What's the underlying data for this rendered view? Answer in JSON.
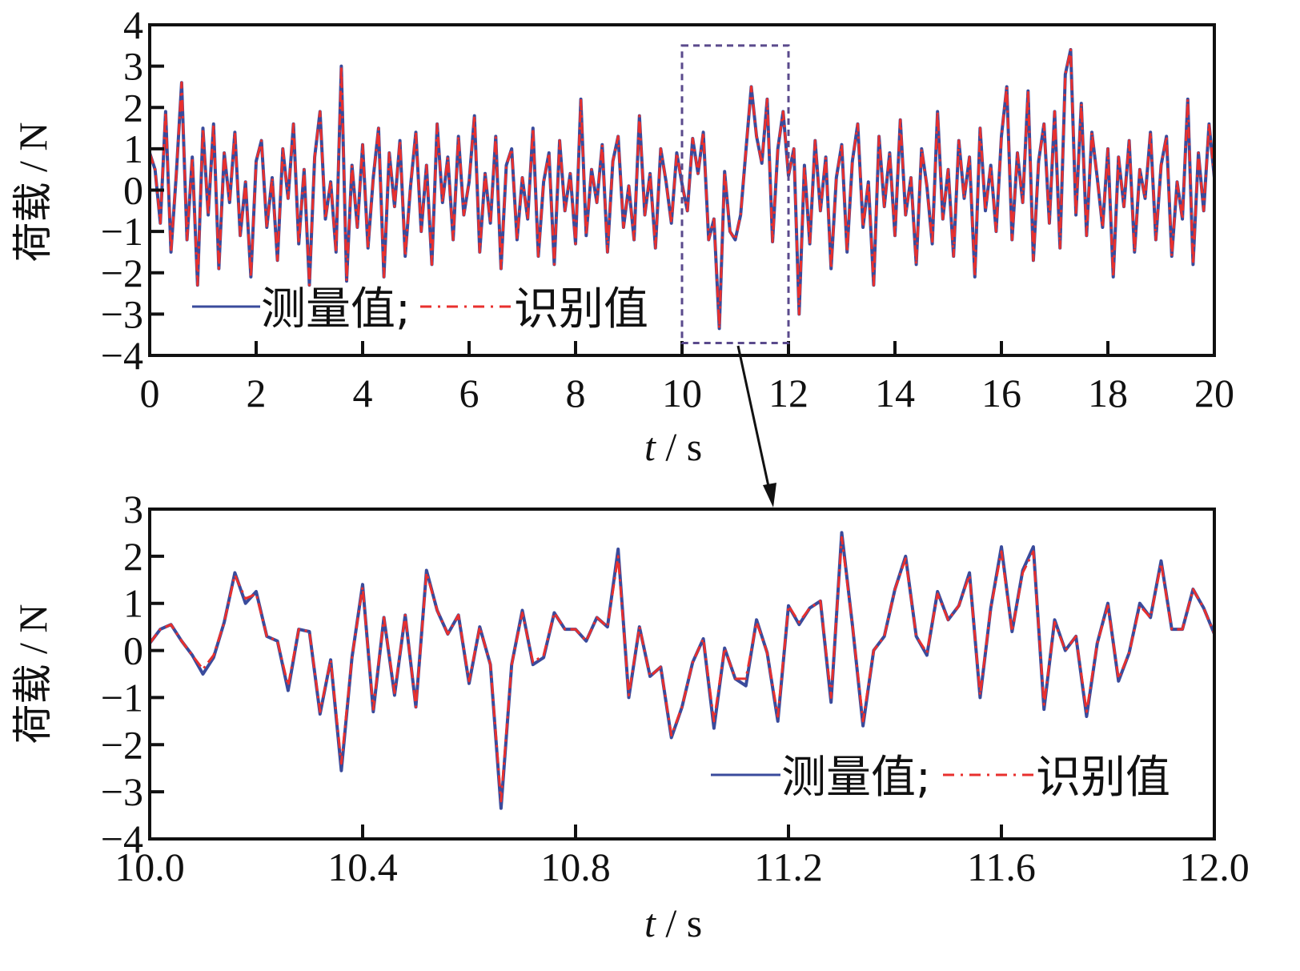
{
  "colors": {
    "measured": "#3a4b9c",
    "identified": "#e8302e",
    "axis": "#111111",
    "zoom_box": "#5a4a8c"
  },
  "chart_data": [
    {
      "type": "line",
      "title": "",
      "xlabel_italic": "t",
      "xlabel_unit": " / s",
      "ylabel": "荷载 / N",
      "xlim": [
        0,
        20
      ],
      "ylim": [
        -4,
        4
      ],
      "xticks": [
        0,
        2,
        4,
        6,
        8,
        10,
        12,
        14,
        16,
        18,
        20
      ],
      "xtick_labels": [
        "0",
        "2",
        "4",
        "6",
        "8",
        "10",
        "12",
        "14",
        "16",
        "18",
        "20"
      ],
      "yticks": [
        4,
        3,
        2,
        1,
        0,
        -1,
        -2,
        -3,
        -4
      ],
      "ytick_labels": [
        "4",
        "3",
        "2",
        "1",
        "0",
        "−1",
        "−2",
        "−3",
        "−4"
      ],
      "grid": false,
      "legend": {
        "placement": "bottom-left",
        "entries": [
          "测量值;",
          "识别值"
        ]
      },
      "zoom_region": {
        "x": [
          10,
          12
        ],
        "y": [
          -3.7,
          3.5
        ]
      },
      "x_start": 0,
      "x_step": 0.1,
      "series": [
        {
          "name": "测量值",
          "style": "solid",
          "values": [
            0.9,
            0.5,
            -0.8,
            1.9,
            -1.5,
            0.4,
            2.6,
            -1.2,
            0.8,
            -2.3,
            1.5,
            -0.6,
            1.6,
            -1.9,
            0.9,
            -0.3,
            1.4,
            -1.1,
            0.2,
            -2.1,
            0.7,
            1.2,
            -0.9,
            0.3,
            -1.7,
            1.0,
            -0.2,
            1.6,
            -1.3,
            0.5,
            -2.3,
            0.8,
            1.9,
            -0.7,
            0.2,
            -1.5,
            3.0,
            -2.2,
            0.6,
            -0.9,
            1.1,
            -1.4,
            0.3,
            1.5,
            -2.1,
            0.9,
            -0.4,
            1.2,
            -1.6,
            0.1,
            1.4,
            -1.0,
            0.6,
            -1.8,
            1.6,
            -0.3,
            0.8,
            -1.2,
            1.3,
            -0.6,
            0.2,
            1.8,
            -1.5,
            0.4,
            -0.8,
            1.3,
            -1.9,
            0.6,
            1.0,
            -1.2,
            0.3,
            -0.7,
            1.5,
            -1.6,
            0.2,
            0.9,
            -1.8,
            1.2,
            -0.5,
            0.4,
            -1.3,
            2.2,
            -1.1,
            0.5,
            -0.3,
            1.1,
            -1.5,
            0.7,
            1.3,
            -0.9,
            0.1,
            -1.2,
            1.8,
            -0.6,
            0.4,
            -1.4,
            1.0,
            0.2,
            -0.8,
            0.9,
            0.15,
            -0.5,
            1.25,
            0.4,
            1.4,
            -1.2,
            -0.7,
            -3.35,
            0.45,
            -1.0,
            -1.2,
            -0.6,
            0.95,
            2.5,
            1.3,
            0.65,
            2.2,
            -1.25,
            1.0,
            1.9,
            0.35,
            1.0,
            -3.0,
            0.6,
            -1.3,
            1.2,
            -0.5,
            0.8,
            -1.9,
            0.3,
            1.1,
            -1.5,
            0.7,
            1.6,
            -0.9,
            0.2,
            -2.3,
            1.3,
            -0.4,
            0.9,
            -1.1,
            1.7,
            -0.6,
            0.3,
            -1.8,
            1.0,
            0.1,
            -1.3,
            1.9,
            -0.7,
            0.5,
            -1.6,
            1.2,
            -0.2,
            0.8,
            -2.1,
            1.5,
            -0.5,
            0.6,
            -1.0,
            1.3,
            2.5,
            -1.2,
            0.9,
            -0.3,
            2.4,
            -1.7,
            0.7,
            1.6,
            -0.8,
            1.9,
            -1.4,
            2.8,
            3.4,
            -0.6,
            2.1,
            -1.1,
            1.4,
            0.3,
            -0.9,
            1.0,
            -2.1,
            0.8,
            -0.4,
            1.2,
            -1.5,
            0.5,
            -0.2,
            1.4,
            -1.2,
            0.6,
            1.3,
            -1.6,
            0.2,
            -0.7,
            2.2,
            -1.8,
            0.9,
            -0.5,
            1.6,
            0.3
          ]
        },
        {
          "name": "识别值",
          "style": "dash-dot",
          "values": [
            0.9,
            0.5,
            -0.8,
            1.9,
            -1.5,
            0.4,
            2.6,
            -1.2,
            0.8,
            -2.3,
            1.5,
            -0.6,
            1.6,
            -1.9,
            0.9,
            -0.3,
            1.4,
            -1.1,
            0.2,
            -2.1,
            0.7,
            1.2,
            -0.9,
            0.3,
            -1.7,
            1.0,
            -0.2,
            1.6,
            -1.3,
            0.5,
            -2.3,
            0.8,
            1.9,
            -0.7,
            0.2,
            -1.5,
            3.0,
            -2.2,
            0.6,
            -0.9,
            1.1,
            -1.4,
            0.3,
            1.5,
            -2.1,
            0.9,
            -0.4,
            1.2,
            -1.6,
            0.1,
            1.4,
            -1.0,
            0.6,
            -1.8,
            1.6,
            -0.3,
            0.8,
            -1.2,
            1.3,
            -0.6,
            0.2,
            1.8,
            -1.5,
            0.4,
            -0.8,
            1.3,
            -1.9,
            0.6,
            1.0,
            -1.2,
            0.3,
            -0.7,
            1.5,
            -1.6,
            0.2,
            0.9,
            -1.8,
            1.2,
            -0.5,
            0.4,
            -1.3,
            2.2,
            -1.1,
            0.5,
            -0.3,
            1.1,
            -1.5,
            0.7,
            1.3,
            -0.9,
            0.1,
            -1.2,
            1.8,
            -0.6,
            0.4,
            -1.4,
            1.0,
            0.2,
            -0.8,
            0.9,
            0.15,
            -0.5,
            1.25,
            0.4,
            1.4,
            -1.2,
            -0.7,
            -3.35,
            0.45,
            -1.0,
            -1.2,
            -0.6,
            0.95,
            2.5,
            1.3,
            0.65,
            2.2,
            -1.25,
            1.0,
            1.9,
            0.35,
            1.0,
            -3.0,
            0.6,
            -1.3,
            1.2,
            -0.5,
            0.8,
            -1.9,
            0.3,
            1.1,
            -1.5,
            0.7,
            1.6,
            -0.9,
            0.2,
            -2.3,
            1.3,
            -0.4,
            0.9,
            -1.1,
            1.7,
            -0.6,
            0.3,
            -1.8,
            1.0,
            0.1,
            -1.3,
            1.9,
            -0.7,
            0.5,
            -1.6,
            1.2,
            -0.2,
            0.8,
            -2.1,
            1.5,
            -0.5,
            0.6,
            -1.0,
            1.3,
            2.5,
            -1.2,
            0.9,
            -0.3,
            2.4,
            -1.7,
            0.7,
            1.6,
            -0.8,
            1.9,
            -1.4,
            2.8,
            3.4,
            -0.6,
            2.1,
            -1.1,
            1.4,
            0.3,
            -0.9,
            1.0,
            -2.1,
            0.8,
            -0.4,
            1.2,
            -1.5,
            0.5,
            -0.2,
            1.4,
            -1.2,
            0.6,
            1.3,
            -1.6,
            0.2,
            -0.7,
            2.2,
            -1.8,
            0.9,
            -0.5,
            1.6,
            0.3
          ]
        }
      ]
    },
    {
      "type": "line",
      "title": "",
      "xlabel_italic": "t",
      "xlabel_unit": " / s",
      "ylabel": "荷载 / N",
      "xlim": [
        10,
        12
      ],
      "ylim": [
        -4,
        3
      ],
      "xticks": [
        10.0,
        10.4,
        10.8,
        11.2,
        11.6,
        12.0
      ],
      "xtick_labels": [
        "10.0",
        "10.4",
        "10.8",
        "11.2",
        "11.6",
        "12.0"
      ],
      "yticks": [
        3,
        2,
        1,
        0,
        -1,
        -2,
        -3,
        -4
      ],
      "ytick_labels": [
        "3",
        "2",
        "1",
        "0",
        "−1",
        "−2",
        "−3",
        "−4"
      ],
      "grid": false,
      "legend": {
        "placement": "bottom-right",
        "entries": [
          "测量值;",
          "识别值"
        ]
      },
      "x_start": 10,
      "x_step": 0.02,
      "series": [
        {
          "name": "测量值",
          "style": "solid",
          "values": [
            0.15,
            0.45,
            0.55,
            0.2,
            -0.1,
            -0.5,
            -0.15,
            0.6,
            1.65,
            1.0,
            1.25,
            0.3,
            0.2,
            -0.85,
            0.45,
            0.4,
            -1.35,
            -0.2,
            -2.55,
            -0.15,
            1.4,
            -1.3,
            0.7,
            -0.95,
            0.75,
            -1.2,
            1.7,
            0.85,
            0.35,
            0.75,
            -0.7,
            0.5,
            -0.3,
            -3.35,
            -0.3,
            0.85,
            -0.3,
            -0.15,
            0.8,
            0.45,
            0.45,
            0.2,
            0.7,
            0.5,
            2.15,
            -1.0,
            0.5,
            -0.55,
            -0.35,
            -1.85,
            -1.2,
            -0.25,
            0.25,
            -1.65,
            0.05,
            -0.6,
            -0.75,
            0.65,
            -0.05,
            -1.5,
            0.95,
            0.55,
            0.9,
            1.05,
            -1.1,
            2.5,
            0.55,
            -1.6,
            0.0,
            0.3,
            1.3,
            2.0,
            0.3,
            -0.1,
            1.25,
            0.65,
            0.95,
            1.65,
            -1.0,
            0.9,
            2.2,
            0.4,
            1.7,
            2.2,
            -1.25,
            0.65,
            0.0,
            0.3,
            -1.4,
            0.15,
            1.0,
            -0.65,
            -0.05,
            1.0,
            0.7,
            1.9,
            0.45,
            0.45,
            1.3,
            0.9,
            0.35
          ]
        },
        {
          "name": "识别值",
          "style": "dash-dot",
          "values": [
            0.15,
            0.45,
            0.55,
            0.2,
            -0.1,
            -0.4,
            -0.1,
            0.6,
            1.6,
            1.1,
            1.2,
            0.3,
            0.2,
            -0.75,
            0.45,
            0.4,
            -1.3,
            -0.2,
            -2.4,
            -0.15,
            1.35,
            -1.25,
            0.7,
            -0.9,
            0.75,
            -1.2,
            1.65,
            0.85,
            0.35,
            0.75,
            -0.65,
            0.5,
            -0.3,
            -3.2,
            -0.3,
            0.8,
            -0.25,
            -0.1,
            0.8,
            0.45,
            0.45,
            0.2,
            0.7,
            0.5,
            2.0,
            -0.95,
            0.5,
            -0.55,
            -0.35,
            -1.8,
            -1.2,
            -0.25,
            0.25,
            -1.5,
            0.05,
            -0.6,
            -0.6,
            0.6,
            -0.05,
            -1.4,
            0.95,
            0.6,
            0.9,
            1.05,
            -1.0,
            2.4,
            0.55,
            -1.5,
            0.0,
            0.3,
            1.3,
            1.95,
            0.3,
            -0.05,
            1.2,
            0.65,
            0.95,
            1.6,
            -0.95,
            0.9,
            2.1,
            0.4,
            1.65,
            2.1,
            -1.15,
            0.6,
            0.0,
            0.3,
            -1.3,
            0.15,
            0.95,
            -0.6,
            -0.05,
            0.95,
            0.7,
            1.85,
            0.45,
            0.45,
            1.3,
            0.9,
            0.35
          ]
        }
      ]
    }
  ]
}
